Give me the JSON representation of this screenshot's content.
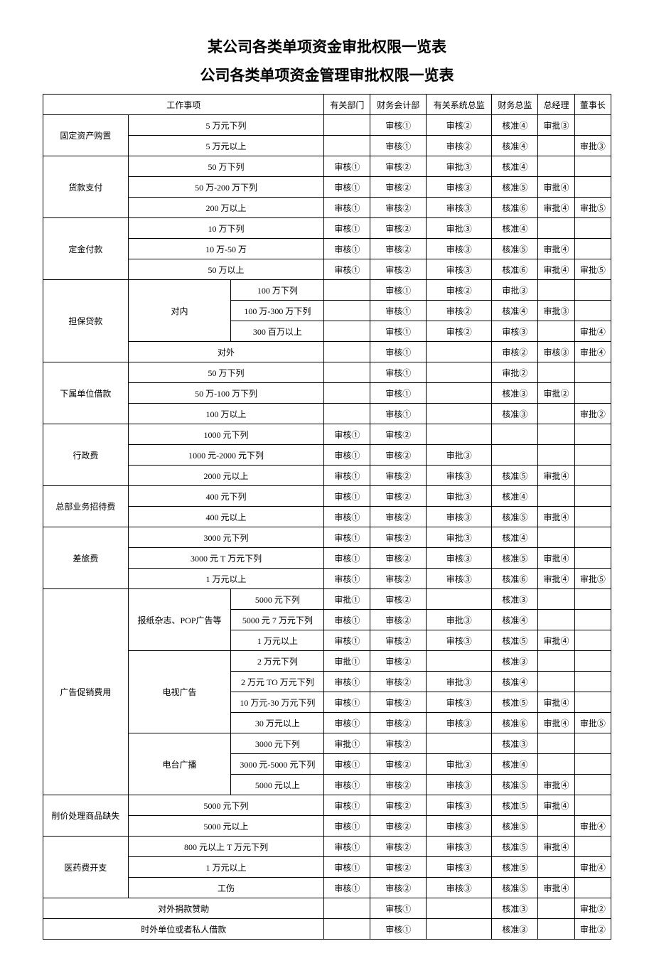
{
  "title1": "某公司各类单项资金审批权限一览表",
  "title2": "公司各类单项资金管理审批权限一览表",
  "headers": {
    "work_item": "工作事项",
    "dept": "有关部门",
    "finance_acct": "财务会计部",
    "sys_director": "有关系统总监",
    "finance_director": "财务总监",
    "gm": "总经理",
    "chairman": "董事长"
  },
  "cat": {
    "fixed_asset": "固定资产购置",
    "payment": "货款支付",
    "deposit": "定金付款",
    "guarantee": "担保贷款",
    "guarantee_in": "对内",
    "guarantee_out": "对外",
    "sub_loan": "下属单位借款",
    "admin": "行政费",
    "biz_entertain": "总部业务招待费",
    "travel": "差旅费",
    "ad_promo": "广告促销费用",
    "ad_paper": "报纸杂志、POP广告等",
    "ad_tv": "电视广告",
    "ad_radio": "电台广播",
    "markdown": "削价处理商品缺失",
    "medical": "医药费开支",
    "donation": "对外捐款赞助",
    "ext_loan": "时外单位或者私人借款"
  },
  "tier": {
    "5w_below": "5 万元下列",
    "5w_above": "5 万元以上",
    "50w_below": "50 万下列",
    "50_200w_below": "50 万-200 万下列",
    "200w_above": "200 万以上",
    "10w_below": "10 万下列",
    "10_50w": "10 万-50 万",
    "50w_above": "50 万以上",
    "100w_below": "100 万下列",
    "100_300w_below": "100 万-300 万下列",
    "300bw_above": "300 百万以上",
    "50_100w_below": "50 万-100 万下列",
    "100w_above": "100 万以上",
    "1000y_below": "1000 元下列",
    "1000_2000y_below": "1000 元-2000 元下列",
    "2000y_above": "2000 元以上",
    "400y_below": "400 元下列",
    "400y_above": "400 元以上",
    "3000y_below": "3000 元下列",
    "3000y_1w_below": "3000 元 T 万元下列",
    "1w_above": "1 万元以上",
    "5000y_below": "5000 元下列",
    "5000y_7w_below": "5000 元 7 万元下列",
    "1wy_above": "1 万元以上",
    "2w_below": "2 万元下列",
    "2w_to_w_below": "2 万元 TO 万元下列",
    "10w_30w_below": "10 万元-30 万元下列",
    "30w_above": "30 万元以上",
    "3000_5000y_below": "3000 元-5000 元下列",
    "5000y_above": "5000 元以上",
    "800y_1w_below": "800 元以上 T 万元下列",
    "injury": "工伤"
  },
  "val": {
    "sh1": "审核①",
    "sh2": "审核②",
    "sh3": "审核③",
    "sp2": "审批②",
    "sp3": "审批③",
    "sp4": "审批④",
    "sp5": "审批⑤",
    "sb1": "审批①",
    "hz2": "核准②",
    "hz3": "核准③",
    "hz4": "核准④",
    "hz5": "核准⑤",
    "hz6": "核准⑥"
  }
}
